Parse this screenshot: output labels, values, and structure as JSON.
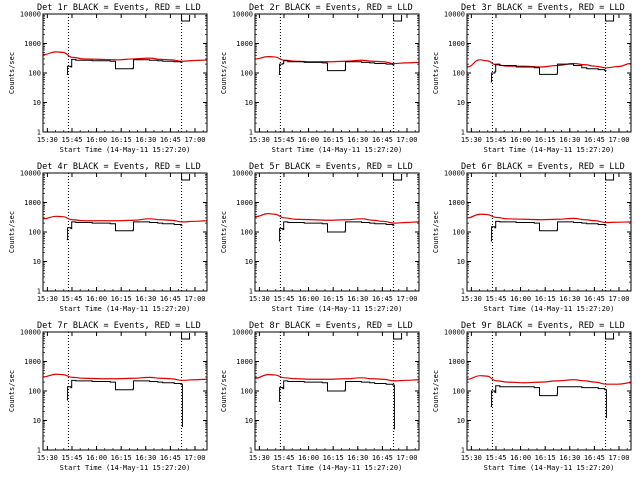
{
  "chart_data": {
    "type": "line",
    "scale": "log",
    "ylim": [
      1,
      10000
    ],
    "y_ticks": [
      "1",
      "10",
      "100",
      "1000",
      "10000"
    ],
    "x_ticks": [
      "15:30",
      "15:45",
      "16:00",
      "16:15",
      "16:30",
      "16:45",
      "17:00"
    ],
    "x_range_minutes": [
      0,
      100
    ],
    "xlabel": "Start Time (14-May-11 15:27:20)",
    "ylabel": "Counts/sec",
    "legend": {
      "black": "Events",
      "red": "LLD"
    },
    "attenuator_markers_minutes": [
      15.5,
      84.5
    ],
    "panels": [
      {
        "title": "Det 1r  BLACK = Events, RED = LLD",
        "events": [
          [
            14.5,
            90
          ],
          [
            15,
            170
          ],
          [
            17,
            160
          ],
          [
            17.5,
            290
          ],
          [
            20,
            270
          ],
          [
            30,
            260
          ],
          [
            41,
            250
          ],
          [
            44,
            250
          ],
          [
            44.2,
            140
          ],
          [
            55,
            150
          ],
          [
            55.2,
            280
          ],
          [
            65,
            270
          ],
          [
            70,
            260
          ],
          [
            73,
            250
          ],
          [
            80,
            240
          ],
          [
            84,
            230
          ],
          [
            85,
            230
          ]
        ],
        "lld": [
          [
            0,
            420
          ],
          [
            8,
            520
          ],
          [
            12,
            500
          ],
          [
            18,
            340
          ],
          [
            25,
            300
          ],
          [
            35,
            290
          ],
          [
            45,
            280
          ],
          [
            55,
            300
          ],
          [
            65,
            320
          ],
          [
            72,
            290
          ],
          [
            78,
            280
          ],
          [
            85,
            250
          ],
          [
            92,
            265
          ],
          [
            100,
            275
          ]
        ]
      },
      {
        "title": "Det 2r  BLACK = Events, RED = LLD",
        "events": [
          [
            14.5,
            90
          ],
          [
            15,
            200
          ],
          [
            17,
            210
          ],
          [
            17.5,
            260
          ],
          [
            20,
            240
          ],
          [
            30,
            230
          ],
          [
            41,
            220
          ],
          [
            44,
            210
          ],
          [
            44.2,
            120
          ],
          [
            55,
            130
          ],
          [
            55.2,
            240
          ],
          [
            65,
            230
          ],
          [
            70,
            220
          ],
          [
            73,
            210
          ],
          [
            80,
            200
          ],
          [
            84,
            190
          ],
          [
            85,
            190
          ]
        ],
        "lld": [
          [
            0,
            300
          ],
          [
            8,
            360
          ],
          [
            12,
            350
          ],
          [
            18,
            270
          ],
          [
            25,
            250
          ],
          [
            35,
            240
          ],
          [
            45,
            240
          ],
          [
            55,
            250
          ],
          [
            65,
            270
          ],
          [
            72,
            250
          ],
          [
            78,
            240
          ],
          [
            85,
            210
          ],
          [
            92,
            220
          ],
          [
            100,
            230
          ]
        ]
      },
      {
        "title": "Det 3r  BLACK = Events, RED = LLD",
        "events": [
          [
            14.5,
            50
          ],
          [
            15,
            100
          ],
          [
            17,
            110
          ],
          [
            17.5,
            200
          ],
          [
            20,
            180
          ],
          [
            30,
            160
          ],
          [
            41,
            150
          ],
          [
            44,
            150
          ],
          [
            44.2,
            90
          ],
          [
            55,
            100
          ],
          [
            55.2,
            200
          ],
          [
            65,
            180
          ],
          [
            70,
            150
          ],
          [
            73,
            140
          ],
          [
            80,
            130
          ],
          [
            84,
            120
          ],
          [
            85,
            120
          ]
        ],
        "lld": [
          [
            0,
            160
          ],
          [
            8,
            280
          ],
          [
            12,
            260
          ],
          [
            18,
            190
          ],
          [
            25,
            170
          ],
          [
            35,
            170
          ],
          [
            45,
            160
          ],
          [
            55,
            180
          ],
          [
            65,
            210
          ],
          [
            72,
            190
          ],
          [
            78,
            170
          ],
          [
            85,
            150
          ],
          [
            92,
            165
          ],
          [
            100,
            210
          ]
        ]
      },
      {
        "title": "Det 4r  BLACK = Events, RED = LLD",
        "events": [
          [
            14.5,
            55
          ],
          [
            15,
            140
          ],
          [
            17,
            130
          ],
          [
            17.5,
            220
          ],
          [
            20,
            210
          ],
          [
            30,
            200
          ],
          [
            41,
            190
          ],
          [
            44,
            190
          ],
          [
            44.2,
            110
          ],
          [
            55,
            120
          ],
          [
            55.2,
            220
          ],
          [
            65,
            210
          ],
          [
            70,
            200
          ],
          [
            73,
            190
          ],
          [
            80,
            180
          ],
          [
            84,
            170
          ],
          [
            85,
            170
          ]
        ],
        "lld": [
          [
            0,
            280
          ],
          [
            8,
            340
          ],
          [
            12,
            330
          ],
          [
            18,
            260
          ],
          [
            25,
            240
          ],
          [
            35,
            240
          ],
          [
            45,
            240
          ],
          [
            55,
            250
          ],
          [
            65,
            280
          ],
          [
            72,
            260
          ],
          [
            78,
            250
          ],
          [
            85,
            220
          ],
          [
            92,
            230
          ],
          [
            100,
            240
          ]
        ]
      },
      {
        "title": "Det 5r  BLACK = Events, RED = LLD",
        "events": [
          [
            14.5,
            50
          ],
          [
            15,
            130
          ],
          [
            17,
            120
          ],
          [
            17.5,
            220
          ],
          [
            20,
            210
          ],
          [
            30,
            200
          ],
          [
            41,
            190
          ],
          [
            44,
            190
          ],
          [
            44.2,
            100
          ],
          [
            55,
            110
          ],
          [
            55.2,
            220
          ],
          [
            65,
            210
          ],
          [
            70,
            200
          ],
          [
            73,
            190
          ],
          [
            80,
            180
          ],
          [
            84,
            170
          ],
          [
            85,
            170
          ]
        ],
        "lld": [
          [
            0,
            330
          ],
          [
            8,
            420
          ],
          [
            12,
            400
          ],
          [
            18,
            300
          ],
          [
            25,
            270
          ],
          [
            35,
            260
          ],
          [
            45,
            250
          ],
          [
            55,
            260
          ],
          [
            65,
            280
          ],
          [
            72,
            250
          ],
          [
            78,
            230
          ],
          [
            85,
            200
          ],
          [
            92,
            210
          ],
          [
            100,
            220
          ]
        ]
      },
      {
        "title": "Det 6r  BLACK = Events, RED = LLD",
        "events": [
          [
            14.5,
            50
          ],
          [
            15,
            150
          ],
          [
            17,
            140
          ],
          [
            17.5,
            230
          ],
          [
            20,
            220
          ],
          [
            30,
            210
          ],
          [
            41,
            200
          ],
          [
            44,
            200
          ],
          [
            44.2,
            110
          ],
          [
            55,
            120
          ],
          [
            55.2,
            220
          ],
          [
            65,
            210
          ],
          [
            70,
            200
          ],
          [
            73,
            190
          ],
          [
            80,
            180
          ],
          [
            84,
            170
          ],
          [
            85,
            170
          ]
        ],
        "lld": [
          [
            0,
            300
          ],
          [
            8,
            400
          ],
          [
            12,
            390
          ],
          [
            18,
            310
          ],
          [
            25,
            280
          ],
          [
            35,
            270
          ],
          [
            45,
            260
          ],
          [
            55,
            270
          ],
          [
            65,
            290
          ],
          [
            72,
            260
          ],
          [
            78,
            240
          ],
          [
            85,
            210
          ],
          [
            92,
            215
          ],
          [
            100,
            220
          ]
        ]
      },
      {
        "title": "Det 7r  BLACK = Events, RED = LLD",
        "events": [
          [
            14.5,
            50
          ],
          [
            15,
            140
          ],
          [
            17,
            130
          ],
          [
            17.5,
            230
          ],
          [
            20,
            220
          ],
          [
            30,
            210
          ],
          [
            41,
            200
          ],
          [
            44,
            200
          ],
          [
            44.2,
            110
          ],
          [
            55,
            120
          ],
          [
            55.2,
            220
          ],
          [
            65,
            210
          ],
          [
            70,
            200
          ],
          [
            73,
            190
          ],
          [
            80,
            180
          ],
          [
            84,
            170
          ],
          [
            85,
            6
          ]
        ],
        "lld": [
          [
            0,
            300
          ],
          [
            8,
            370
          ],
          [
            12,
            360
          ],
          [
            18,
            290
          ],
          [
            25,
            270
          ],
          [
            35,
            260
          ],
          [
            45,
            260
          ],
          [
            55,
            270
          ],
          [
            65,
            290
          ],
          [
            72,
            270
          ],
          [
            78,
            260
          ],
          [
            85,
            230
          ],
          [
            92,
            240
          ],
          [
            100,
            250
          ]
        ]
      },
      {
        "title": "Det 8r  BLACK = Events, RED = LLD",
        "events": [
          [
            14.5,
            45
          ],
          [
            15,
            130
          ],
          [
            17,
            120
          ],
          [
            17.5,
            220
          ],
          [
            20,
            210
          ],
          [
            30,
            200
          ],
          [
            41,
            190
          ],
          [
            44,
            190
          ],
          [
            44.2,
            100
          ],
          [
            55,
            110
          ],
          [
            55.2,
            210
          ],
          [
            65,
            200
          ],
          [
            70,
            190
          ],
          [
            73,
            180
          ],
          [
            80,
            170
          ],
          [
            84,
            160
          ],
          [
            85,
            5
          ]
        ],
        "lld": [
          [
            0,
            270
          ],
          [
            8,
            360
          ],
          [
            12,
            350
          ],
          [
            18,
            280
          ],
          [
            25,
            260
          ],
          [
            35,
            250
          ],
          [
            45,
            250
          ],
          [
            55,
            260
          ],
          [
            65,
            280
          ],
          [
            72,
            260
          ],
          [
            78,
            250
          ],
          [
            85,
            220
          ],
          [
            92,
            230
          ],
          [
            100,
            240
          ]
        ]
      },
      {
        "title": "Det 9r  BLACK = Events, RED = LLD",
        "events": [
          [
            14.5,
            30
          ],
          [
            15,
            100
          ],
          [
            17,
            90
          ],
          [
            17.5,
            150
          ],
          [
            20,
            140
          ],
          [
            30,
            140
          ],
          [
            41,
            130
          ],
          [
            44,
            130
          ],
          [
            44.2,
            70
          ],
          [
            55,
            80
          ],
          [
            55.2,
            140
          ],
          [
            65,
            140
          ],
          [
            70,
            130
          ],
          [
            73,
            130
          ],
          [
            80,
            120
          ],
          [
            84,
            110
          ],
          [
            85,
            12
          ]
        ],
        "lld": [
          [
            0,
            250
          ],
          [
            8,
            330
          ],
          [
            12,
            320
          ],
          [
            18,
            220
          ],
          [
            25,
            200
          ],
          [
            35,
            190
          ],
          [
            45,
            200
          ],
          [
            55,
            220
          ],
          [
            65,
            240
          ],
          [
            72,
            220
          ],
          [
            78,
            200
          ],
          [
            85,
            170
          ],
          [
            92,
            170
          ],
          [
            100,
            190
          ]
        ]
      }
    ]
  }
}
